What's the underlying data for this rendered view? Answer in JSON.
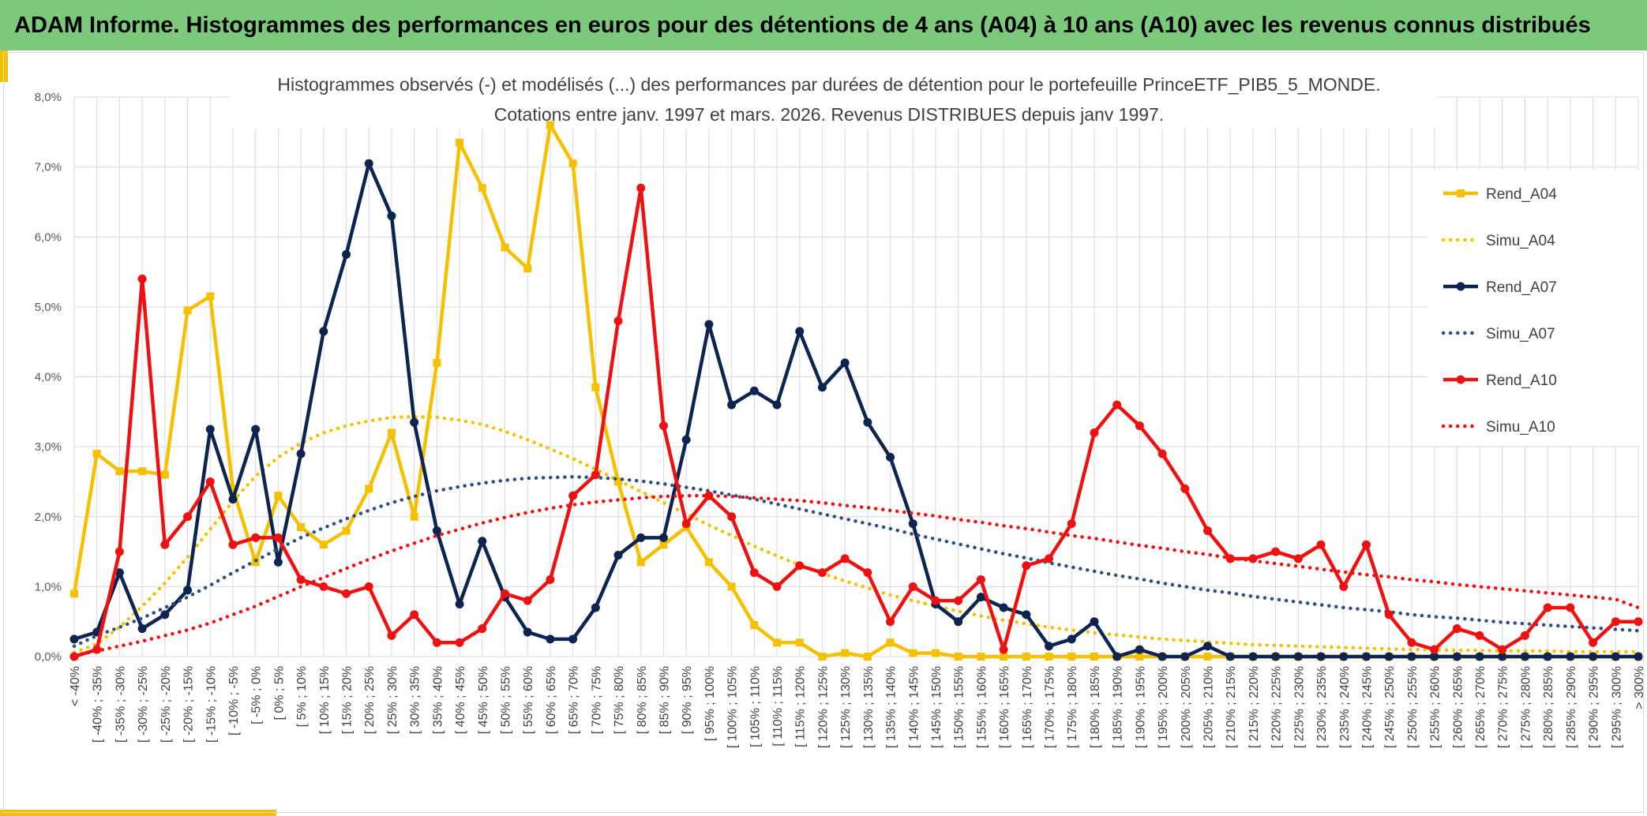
{
  "header": {
    "title": "ADAM Informe. Histogrammes des performances en euros pour des détentions de 4 ans (A04) à 10 ans (A10) avec les revenus connus distribués"
  },
  "colors": {
    "header_bg": "#7cc97c",
    "A04": "#f5c000",
    "A07": "#0d2350",
    "A07_simu": "#2f4f80",
    "A10": "#ee1111",
    "grid": "#d9d9d9"
  },
  "chart_data": {
    "type": "line",
    "title": [
      "Histogrammes observés (-) et modélisés (...) des performances par durées de détention pour le portefeuille PrinceETF_PIB5_5_MONDE.",
      "Cotations entre janv. 1997 et mars. 2026. Revenus DISTRIBUES depuis janv 1997."
    ],
    "xlabel": "",
    "ylabel": "",
    "ylim": [
      0,
      8
    ],
    "yticks": [
      "0,0%",
      "1,0%",
      "2,0%",
      "3,0%",
      "4,0%",
      "5,0%",
      "6,0%",
      "7,0%",
      "8,0%"
    ],
    "legend_position": "right",
    "categories": [
      "< -40%",
      "[ -40% ; -35%",
      "[ -35% ; -30%",
      "[ -30% ; -25%",
      "[ -25% ; -20%",
      "[ -20% ; -15%",
      "[ -15% ; -10%",
      "[ -10% ; -5%",
      "[ -5% ; 0%",
      "[ 0% ; 5%",
      "[ 5% ; 10%",
      "[ 10% ; 15%",
      "[ 15% ; 20%",
      "[ 20% ; 25%",
      "[ 25% ; 30%",
      "[ 30% ; 35%",
      "[ 35% ; 40%",
      "[ 40% ; 45%",
      "[ 45% ; 50%",
      "[ 50% ; 55%",
      "[ 55% ; 60%",
      "[ 60% ; 65%",
      "[ 65% ; 70%",
      "[ 70% ; 75%",
      "[ 75% ; 80%",
      "[ 80% ; 85%",
      "[ 85% ; 90%",
      "[ 90% ; 95%",
      "[ 95% ; 100%",
      "[ 100% ; 105%",
      "[ 105% ; 110%",
      "[ 110% ; 115%",
      "[ 115% ; 120%",
      "[ 120% ; 125%",
      "[ 125% ; 130%",
      "[ 130% ; 135%",
      "[ 135% ; 140%",
      "[ 140% ; 145%",
      "[ 145% ; 150%",
      "[ 150% ; 155%",
      "[ 155% ; 160%",
      "[ 160% ; 165%",
      "[ 165% ; 170%",
      "[ 170% ; 175%",
      "[ 175% ; 180%",
      "[ 180% ; 185%",
      "[ 185% ; 190%",
      "[ 190% ; 195%",
      "[ 195% ; 200%",
      "[ 200% ; 205%",
      "[ 205% ; 210%",
      "[ 210% ; 215%",
      "[ 215% ; 220%",
      "[ 220% ; 225%",
      "[ 225% ; 230%",
      "[ 230% ; 235%",
      "[ 235% ; 240%",
      "[ 240% ; 245%",
      "[ 245% ; 250%",
      "[ 250% ; 255%",
      "[ 255% ; 260%",
      "[ 260% ; 265%",
      "[ 265% ; 270%",
      "[ 270% ; 275%",
      "[ 275% ; 280%",
      "[ 280% ; 285%",
      "[ 285% ; 290%",
      "[ 290% ; 295%",
      "[ 295% ; 300%",
      "> 300%"
    ],
    "series": [
      {
        "name": "Rend_A04",
        "style": "solid",
        "marker": "square",
        "color": "#f5c000",
        "values": [
          0.9,
          2.9,
          2.65,
          2.65,
          2.6,
          4.95,
          5.15,
          2.4,
          1.35,
          2.3,
          1.85,
          1.6,
          1.8,
          2.4,
          3.2,
          2.0,
          4.2,
          7.35,
          6.7,
          5.85,
          5.55,
          7.6,
          7.05,
          3.85,
          2.5,
          1.35,
          1.6,
          1.85,
          1.35,
          1.0,
          0.45,
          0.2,
          0.2,
          0.0,
          0.05,
          0.0,
          0.2,
          0.05,
          0.05,
          0.0,
          0.0,
          0.0,
          0.0,
          0.0,
          0.0,
          0.0,
          0.0,
          0.0,
          0.0,
          0.0,
          0.0,
          0.0,
          0.0,
          0.0,
          0.0,
          0.0,
          0.0,
          0.0,
          0.0,
          0.0,
          0.0,
          0.0,
          0.0,
          0.0,
          0.0,
          0.0,
          0.0,
          0.0,
          0.0,
          0.0
        ]
      },
      {
        "name": "Simu_A04",
        "style": "dotted",
        "color": "#f5c000",
        "values": [
          0.06,
          0.18,
          0.42,
          0.72,
          1.05,
          1.42,
          1.82,
          2.22,
          2.58,
          2.85,
          3.05,
          3.2,
          3.3,
          3.37,
          3.42,
          3.43,
          3.42,
          3.38,
          3.32,
          3.22,
          3.1,
          2.97,
          2.83,
          2.68,
          2.52,
          2.36,
          2.2,
          2.04,
          1.88,
          1.73,
          1.58,
          1.44,
          1.31,
          1.19,
          1.08,
          0.98,
          0.88,
          0.8,
          0.72,
          0.65,
          0.58,
          0.52,
          0.47,
          0.42,
          0.38,
          0.34,
          0.31,
          0.28,
          0.25,
          0.23,
          0.21,
          0.19,
          0.17,
          0.16,
          0.15,
          0.14,
          0.13,
          0.12,
          0.11,
          0.1,
          0.1,
          0.09,
          0.09,
          0.08,
          0.08,
          0.08,
          0.07,
          0.07,
          0.07,
          0.07
        ]
      },
      {
        "name": "Rend_A07",
        "style": "solid",
        "marker": "circle",
        "color": "#0d2350",
        "values": [
          0.25,
          0.35,
          1.2,
          0.4,
          0.6,
          0.95,
          3.25,
          2.25,
          3.25,
          1.35,
          2.9,
          4.65,
          5.75,
          7.05,
          6.3,
          3.35,
          1.8,
          0.75,
          1.65,
          0.85,
          0.35,
          0.25,
          0.25,
          0.7,
          1.45,
          1.7,
          1.7,
          3.1,
          4.75,
          3.6,
          3.8,
          3.6,
          4.65,
          3.85,
          4.2,
          3.35,
          2.85,
          1.9,
          0.75,
          0.5,
          0.85,
          0.7,
          0.6,
          0.15,
          0.25,
          0.5,
          0.0,
          0.1,
          0.0,
          0.0,
          0.15,
          0.0,
          0.0,
          0.0,
          0.0,
          0.0,
          0.0,
          0.0,
          0.0,
          0.0,
          0.0,
          0.0,
          0.0,
          0.0,
          0.0,
          0.0,
          0.0,
          0.0,
          0.0,
          0.0
        ]
      },
      {
        "name": "Simu_A07",
        "style": "dotted",
        "color": "#2f4f80",
        "values": [
          0.15,
          0.3,
          0.42,
          0.55,
          0.7,
          0.85,
          1.02,
          1.2,
          1.37,
          1.54,
          1.7,
          1.84,
          1.97,
          2.09,
          2.2,
          2.29,
          2.37,
          2.43,
          2.48,
          2.52,
          2.55,
          2.56,
          2.57,
          2.56,
          2.54,
          2.51,
          2.47,
          2.42,
          2.37,
          2.31,
          2.25,
          2.18,
          2.11,
          2.04,
          1.97,
          1.9,
          1.83,
          1.75,
          1.68,
          1.61,
          1.54,
          1.47,
          1.41,
          1.34,
          1.28,
          1.22,
          1.16,
          1.11,
          1.05,
          1.0,
          0.95,
          0.91,
          0.86,
          0.82,
          0.78,
          0.74,
          0.7,
          0.67,
          0.64,
          0.6,
          0.57,
          0.55,
          0.52,
          0.49,
          0.47,
          0.45,
          0.43,
          0.41,
          0.39,
          0.37
        ]
      },
      {
        "name": "Rend_A10",
        "style": "solid",
        "marker": "circle",
        "color": "#ee1111",
        "values": [
          0.0,
          0.1,
          1.5,
          5.4,
          1.6,
          2.0,
          2.5,
          1.6,
          1.7,
          1.7,
          1.1,
          1.0,
          0.9,
          1.0,
          0.3,
          0.6,
          0.2,
          0.2,
          0.4,
          0.9,
          0.8,
          1.1,
          2.3,
          2.6,
          4.8,
          6.7,
          3.3,
          1.9,
          2.3,
          2.0,
          1.2,
          1.0,
          1.3,
          1.2,
          1.4,
          1.2,
          0.5,
          1.0,
          0.8,
          0.8,
          1.1,
          0.1,
          1.3,
          1.4,
          1.9,
          3.2,
          3.6,
          3.3,
          2.9,
          2.4,
          1.8,
          1.4,
          1.4,
          1.5,
          1.4,
          1.6,
          1.0,
          1.6,
          0.6,
          0.2,
          0.1,
          0.4,
          0.3,
          0.1,
          0.3,
          0.7,
          0.7,
          0.2,
          0.5,
          0.5
        ]
      },
      {
        "name": "Simu_A10",
        "style": "dotted",
        "color": "#ee1111",
        "values": [
          0.02,
          0.08,
          0.15,
          0.22,
          0.3,
          0.38,
          0.48,
          0.6,
          0.72,
          0.86,
          1.0,
          1.13,
          1.26,
          1.39,
          1.51,
          1.62,
          1.73,
          1.82,
          1.91,
          1.99,
          2.06,
          2.12,
          2.17,
          2.21,
          2.24,
          2.27,
          2.29,
          2.3,
          2.3,
          2.29,
          2.27,
          2.25,
          2.23,
          2.2,
          2.16,
          2.13,
          2.09,
          2.05,
          2.01,
          1.96,
          1.92,
          1.87,
          1.83,
          1.78,
          1.73,
          1.69,
          1.64,
          1.59,
          1.55,
          1.5,
          1.46,
          1.41,
          1.37,
          1.33,
          1.29,
          1.25,
          1.21,
          1.17,
          1.14,
          1.1,
          1.07,
          1.03,
          1.0,
          0.97,
          0.94,
          0.91,
          0.88,
          0.85,
          0.82,
          0.7
        ]
      }
    ]
  }
}
